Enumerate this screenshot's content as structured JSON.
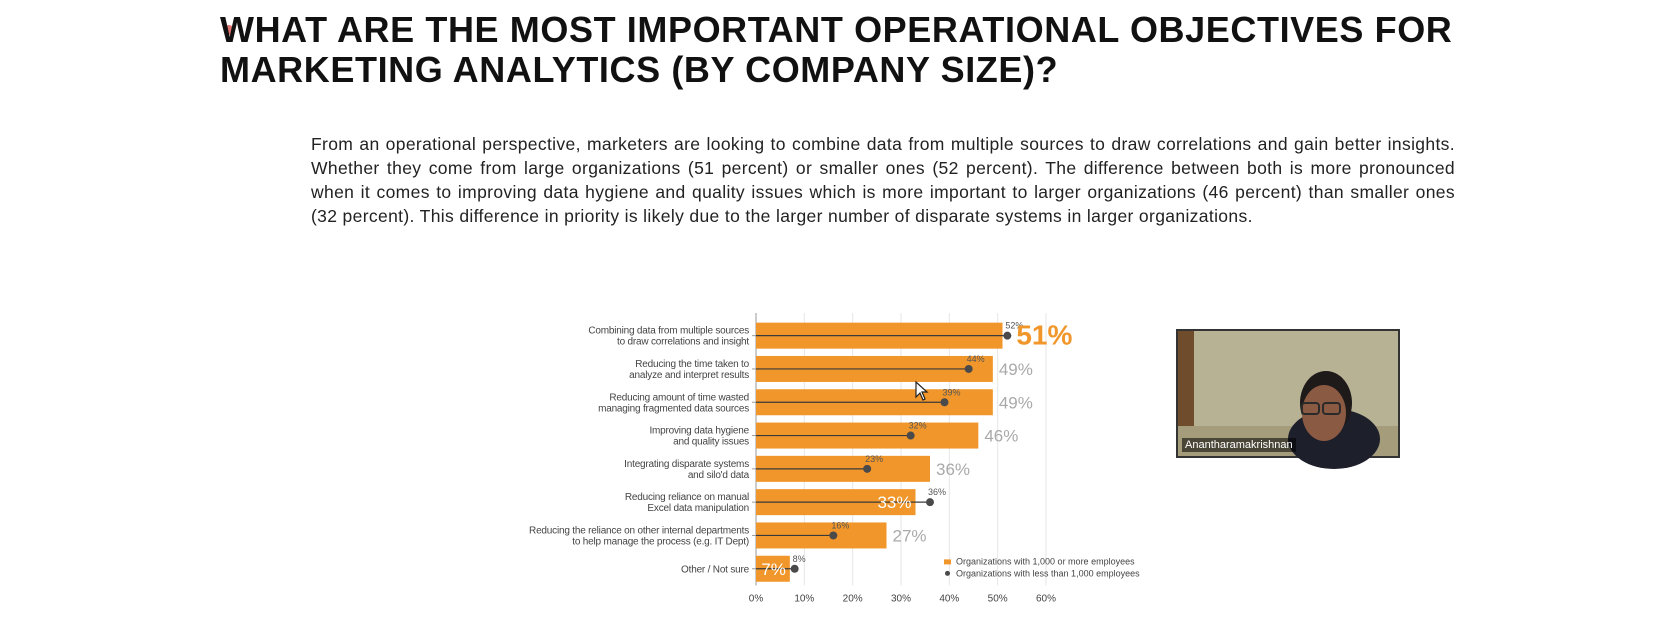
{
  "slide": {
    "title_line1": "WHAT ARE THE MOST IMPORTANT OPERATIONAL OBJECTIVES  FOR",
    "title_line2": "MARKETING ANALYTICS (BY COMPANY SIZE)?",
    "description": "From an operational perspective, marketers are looking to combine data from multiple sources to  draw correlations and gain better insights. Whether they come from large organizations (51 percent)  or smaller ones (52 percent). The difference between both is more pronounced when it comes to improving data hygiene and quality issues which is more important to larger organizations (46  percent) than smaller ones (32 percent). This difference in priority is likely due to the larger number  of disparate systems in larger organizations."
  },
  "video": {
    "participant_name": "Anantharamakrishnan"
  },
  "chart_data": {
    "type": "bar",
    "orientation": "horizontal",
    "categories": [
      [
        "Combining data from multiple sources",
        "to draw correlations and insight"
      ],
      [
        "Reducing the time taken to",
        "analyze and interpret results"
      ],
      [
        "Reducing amount of time wasted",
        "managing fragmented data sources"
      ],
      [
        "Improving data hygiene",
        "and quality issues"
      ],
      [
        "Integrating disparate systems",
        "and silo'd data"
      ],
      [
        "Reducing reliance on manual",
        "Excel data manipulation"
      ],
      [
        "Reducing the reliance on other internal departments",
        "to help manage the process (e.g. IT Dept)"
      ],
      [
        "Other / Not sure"
      ]
    ],
    "series": [
      {
        "name": "Organizations with 1,000 or more employees",
        "mark": "bar",
        "values": [
          51,
          49,
          49,
          46,
          36,
          33,
          27,
          7
        ],
        "labels": [
          "51%",
          "49%",
          "49%",
          "46%",
          "36%",
          "33%",
          "27%",
          "7%"
        ]
      },
      {
        "name": "Organizations with less than 1,000 employees",
        "mark": "dot",
        "values": [
          52,
          44,
          39,
          32,
          23,
          36,
          16,
          8
        ],
        "labels": [
          "52%",
          "44%",
          "39%",
          "32%",
          "23%",
          "36%",
          "16%",
          "8%"
        ]
      }
    ],
    "x_ticks": [
      "0%",
      "10%",
      "20%",
      "30%",
      "40%",
      "50%",
      "60%"
    ],
    "xlim": [
      0,
      60
    ],
    "legend_position": "bottom-right",
    "grid": true,
    "colors": {
      "bar": "#F0962A",
      "dot": "#4a4a4a",
      "large_label": "#F0962A",
      "bar_label": "#a9a9a9",
      "grid": "#e6e6e6"
    }
  }
}
